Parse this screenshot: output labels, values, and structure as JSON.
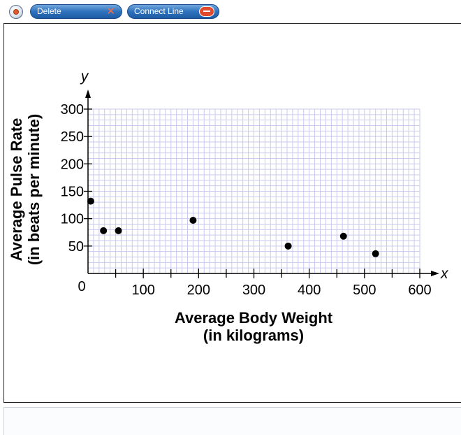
{
  "toolbar": {
    "pointer_icon": "pointer-icon",
    "delete_label": "Delete",
    "delete_icon": "close-icon",
    "connect_label": "Connect Line",
    "connect_icon": "connect-line-icon"
  },
  "chart_data": {
    "type": "scatter",
    "xlabel": [
      "Average Body Weight",
      "(in kilograms)"
    ],
    "ylabel": [
      "Average Pulse Rate",
      "(in beats per minute)"
    ],
    "x_axis_letter": "x",
    "y_axis_letter": "y",
    "origin_label": "0",
    "xlim": [
      0,
      600
    ],
    "ylim": [
      0,
      300
    ],
    "xticks": [
      100,
      200,
      300,
      400,
      500,
      600
    ],
    "yticks": [
      50,
      100,
      150,
      200,
      250,
      300
    ],
    "xtick_labels": [
      "100",
      "200",
      "300",
      "400",
      "500",
      "600"
    ],
    "ytick_labels": [
      "50",
      "100",
      "150",
      "200",
      "250",
      "300"
    ],
    "grid": true,
    "grid_step_x": 10,
    "grid_step_y": 10,
    "grid_color": "#c9c9ee",
    "point_color": "#000000",
    "points": [
      {
        "x": 5,
        "y": 132
      },
      {
        "x": 28,
        "y": 78
      },
      {
        "x": 55,
        "y": 78
      },
      {
        "x": 190,
        "y": 97
      },
      {
        "x": 362,
        "y": 50
      },
      {
        "x": 462,
        "y": 68
      },
      {
        "x": 520,
        "y": 36
      }
    ]
  }
}
